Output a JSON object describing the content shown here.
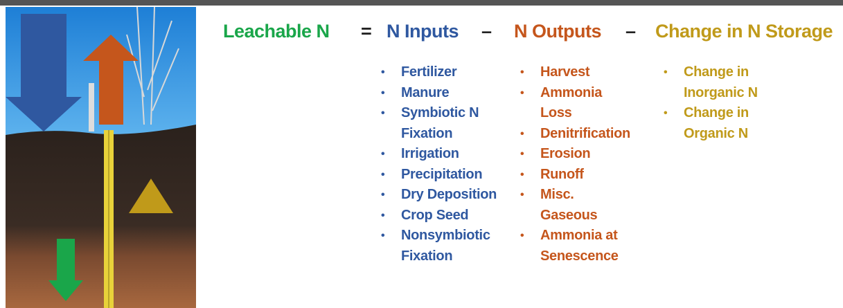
{
  "equation": {
    "result": "Leachable N",
    "equals": "=",
    "inputs": "N Inputs",
    "minus1": "–",
    "outputs": "N Outputs",
    "minus2": "–",
    "storage": "Change in N Storage"
  },
  "inputs": [
    "Fertilizer",
    "Manure",
    "Symbiotic N\nFixation",
    "Irrigation",
    "Precipitation",
    "Dry Deposition",
    "Crop Seed",
    "Nonsymbiotic\nFixation"
  ],
  "outputs": [
    "Harvest",
    "Ammonia\nLoss",
    "Denitrification",
    "Erosion",
    "Runoff",
    "Misc.\nGaseous",
    "Ammonia at\nSenescence"
  ],
  "storage": [
    "Change in\nInorganic N",
    "Change in\nOrganic N"
  ]
}
